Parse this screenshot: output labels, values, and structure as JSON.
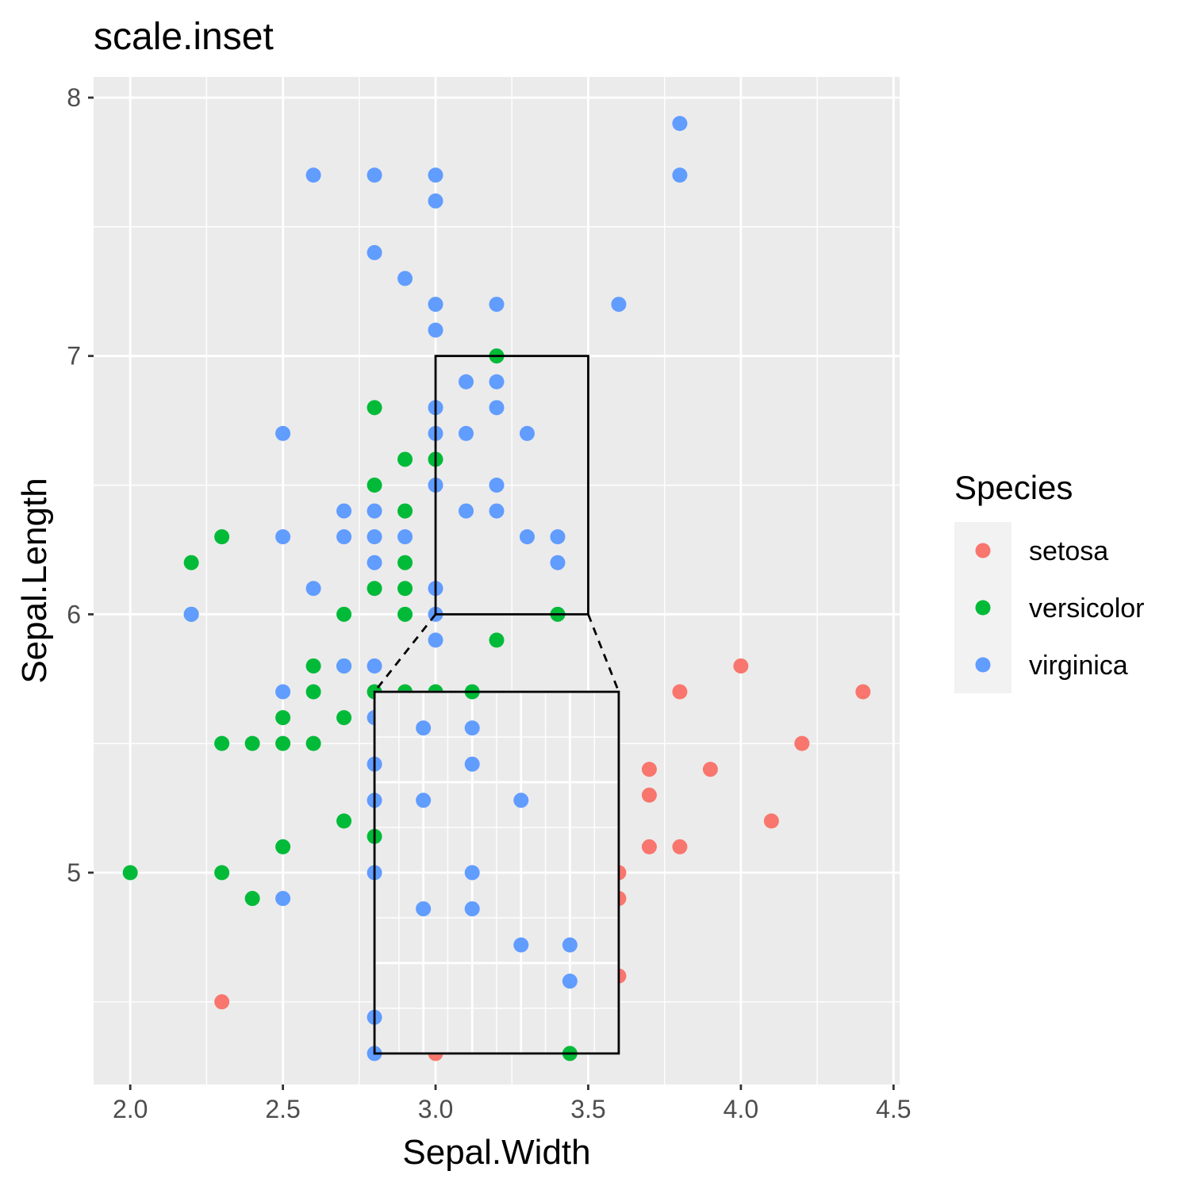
{
  "chart_data": {
    "type": "scatter",
    "title": "scale.inset",
    "xlabel": "Sepal.Width",
    "ylabel": "Sepal.Length",
    "xlim": [
      1.88,
      4.52
    ],
    "ylim": [
      4.18,
      8.08
    ],
    "x_ticks": [
      "2.0",
      "2.5",
      "3.0",
      "3.5",
      "4.0",
      "4.5"
    ],
    "y_ticks": [
      "5",
      "6",
      "7",
      "8"
    ],
    "grid": true,
    "legend": {
      "title": "Species",
      "position": "right"
    },
    "series": [
      {
        "name": "setosa",
        "color": "#F8766D",
        "points": [
          [
            2.3,
            4.5
          ],
          [
            3.0,
            4.3
          ],
          [
            3.6,
            4.6
          ],
          [
            3.6,
            4.9
          ],
          [
            3.6,
            5.0
          ],
          [
            3.7,
            5.1
          ],
          [
            3.8,
            5.1
          ],
          [
            3.7,
            5.3
          ],
          [
            3.7,
            5.4
          ],
          [
            3.9,
            5.4
          ],
          [
            4.1,
            5.2
          ],
          [
            4.2,
            5.5
          ],
          [
            3.8,
            5.7
          ],
          [
            4.4,
            5.7
          ],
          [
            4.0,
            5.8
          ]
        ]
      },
      {
        "name": "versicolor",
        "color": "#00BA38",
        "points": [
          [
            2.0,
            5.0
          ],
          [
            2.3,
            5.0
          ],
          [
            2.4,
            4.9
          ],
          [
            2.5,
            5.1
          ],
          [
            2.7,
            5.2
          ],
          [
            2.3,
            5.5
          ],
          [
            2.4,
            5.5
          ],
          [
            2.5,
            5.5
          ],
          [
            2.6,
            5.5
          ],
          [
            2.5,
            5.6
          ],
          [
            2.7,
            5.6
          ],
          [
            2.6,
            5.7
          ],
          [
            2.8,
            5.7
          ],
          [
            2.9,
            5.7
          ],
          [
            3.0,
            5.7
          ],
          [
            2.6,
            5.8
          ],
          [
            2.7,
            5.8
          ],
          [
            2.2,
            6.0
          ],
          [
            2.7,
            6.0
          ],
          [
            2.9,
            6.0
          ],
          [
            3.4,
            6.0
          ],
          [
            2.8,
            6.1
          ],
          [
            2.9,
            6.1
          ],
          [
            2.2,
            6.2
          ],
          [
            2.9,
            6.2
          ],
          [
            2.3,
            6.3
          ],
          [
            2.9,
            6.4
          ],
          [
            2.8,
            6.5
          ],
          [
            2.9,
            6.6
          ],
          [
            3.0,
            6.6
          ],
          [
            2.8,
            6.8
          ],
          [
            3.2,
            7.0
          ],
          [
            3.2,
            5.9
          ]
        ]
      },
      {
        "name": "virginica",
        "color": "#619CFF",
        "points": [
          [
            2.5,
            4.9
          ],
          [
            2.5,
            5.7
          ],
          [
            2.8,
            5.8
          ],
          [
            2.7,
            5.8
          ],
          [
            2.8,
            5.6
          ],
          [
            3.0,
            5.9
          ],
          [
            2.2,
            6.0
          ],
          [
            3.0,
            6.0
          ],
          [
            2.6,
            6.1
          ],
          [
            3.0,
            6.1
          ],
          [
            2.8,
            6.2
          ],
          [
            3.4,
            6.2
          ],
          [
            2.5,
            6.3
          ],
          [
            2.7,
            6.3
          ],
          [
            2.8,
            6.3
          ],
          [
            2.9,
            6.3
          ],
          [
            3.3,
            6.3
          ],
          [
            3.4,
            6.3
          ],
          [
            2.7,
            6.4
          ],
          [
            2.8,
            6.4
          ],
          [
            3.1,
            6.4
          ],
          [
            3.2,
            6.4
          ],
          [
            3.0,
            6.5
          ],
          [
            3.2,
            6.5
          ],
          [
            2.5,
            6.7
          ],
          [
            3.0,
            6.7
          ],
          [
            3.1,
            6.7
          ],
          [
            3.3,
            6.7
          ],
          [
            3.0,
            6.8
          ],
          [
            3.2,
            6.8
          ],
          [
            3.1,
            6.9
          ],
          [
            3.2,
            6.9
          ],
          [
            3.0,
            7.1
          ],
          [
            3.0,
            7.2
          ],
          [
            3.2,
            7.2
          ],
          [
            3.6,
            7.2
          ],
          [
            2.9,
            7.3
          ],
          [
            2.8,
            7.4
          ],
          [
            3.0,
            7.6
          ],
          [
            2.6,
            7.7
          ],
          [
            2.8,
            7.7
          ],
          [
            3.0,
            7.7
          ],
          [
            3.8,
            7.7
          ],
          [
            3.8,
            7.9
          ]
        ]
      }
    ],
    "inset": {
      "source_region": {
        "x": [
          3.0,
          3.5
        ],
        "y": [
          6.0,
          7.0
        ]
      },
      "target_region": {
        "x": [
          2.8,
          3.6
        ],
        "y": [
          4.3,
          5.7
        ]
      }
    }
  }
}
